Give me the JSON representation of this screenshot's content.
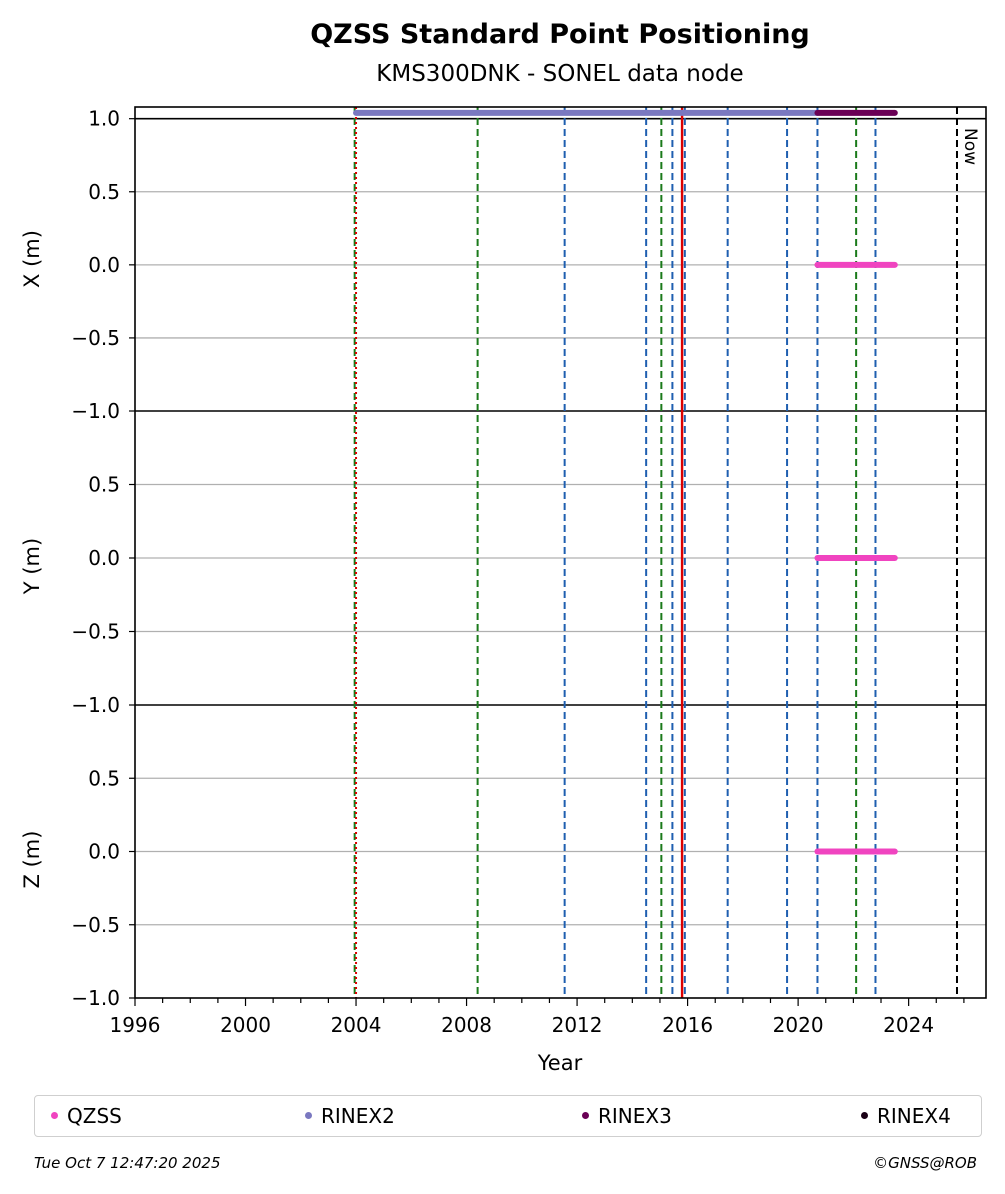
{
  "chart_data": {
    "type": "scatter",
    "title": "QZSS Standard Point Positioning",
    "subtitle": "KMS300DNK - SONEL data node",
    "xlabel": "Year",
    "xlim": [
      1996,
      2026.8
    ],
    "x_ticks": [
      "1996",
      "2000",
      "2004",
      "2008",
      "2012",
      "2016",
      "2020",
      "2024"
    ],
    "grid": true,
    "legend_position": "bottom",
    "panels": [
      {
        "ylabel": "X (m)",
        "ylim": [
          -1.0,
          1.08
        ],
        "y_ticks": [
          "1.0",
          "0.5",
          "0.0",
          "−0.5",
          "−1.0"
        ],
        "y_tick_values": [
          1.0,
          0.5,
          0.0,
          -0.5,
          -1.0
        ]
      },
      {
        "ylabel": "Y (m)",
        "ylim": [
          -1.0,
          1.0
        ],
        "y_ticks": [
          "0.5",
          "0.0",
          "−0.5",
          "−1.0"
        ],
        "y_tick_values": [
          0.5,
          0.0,
          -0.5,
          -1.0
        ]
      },
      {
        "ylabel": "Z (m)",
        "ylim": [
          -1.0,
          1.0
        ],
        "y_ticks": [
          "0.5",
          "0.0",
          "−0.5",
          "−1.0"
        ],
        "y_tick_values": [
          0.5,
          0.0,
          -0.5,
          -1.0
        ]
      }
    ],
    "series": [
      {
        "name": "QZSS",
        "color": "#f044c0",
        "x_range": [
          2020.7,
          2023.5
        ],
        "y": {
          "X": 0.0,
          "Y": 0.0,
          "Z": 0.0
        }
      },
      {
        "name": "RINEX2",
        "color": "#7a78c0",
        "x_range": [
          2004.0,
          2020.7
        ],
        "availability_y": 1.04
      },
      {
        "name": "RINEX3",
        "color": "#6a0055",
        "x_range": [
          2020.7,
          2023.5
        ],
        "availability_y": 1.04
      },
      {
        "name": "RINEX4",
        "color": "#1a0015"
      }
    ],
    "event_lines": [
      {
        "x": 2003.95,
        "style": "dashed",
        "color": "#1a7a1a"
      },
      {
        "x": 2004.0,
        "style": "dotted",
        "color": "#dd0000"
      },
      {
        "x": 2008.4,
        "style": "dashed",
        "color": "#1a7a1a"
      },
      {
        "x": 2011.55,
        "style": "dashed",
        "color": "#1f5fb0"
      },
      {
        "x": 2014.5,
        "style": "dashed",
        "color": "#1f5fb0"
      },
      {
        "x": 2015.05,
        "style": "dashed",
        "color": "#1a7a1a"
      },
      {
        "x": 2015.45,
        "style": "dashed",
        "color": "#1f5fb0"
      },
      {
        "x": 2015.8,
        "style": "solid",
        "color": "#dd0000"
      },
      {
        "x": 2015.9,
        "style": "dashed",
        "color": "#1f5fb0"
      },
      {
        "x": 2017.45,
        "style": "dashed",
        "color": "#1f5fb0"
      },
      {
        "x": 2019.6,
        "style": "dashed",
        "color": "#1f5fb0"
      },
      {
        "x": 2020.7,
        "style": "dashed",
        "color": "#1f5fb0"
      },
      {
        "x": 2022.1,
        "style": "dashed",
        "color": "#1a7a1a"
      },
      {
        "x": 2022.8,
        "style": "dashed",
        "color": "#1f5fb0"
      },
      {
        "x": 2025.75,
        "style": "dashed",
        "color": "#000000",
        "label": "Now"
      }
    ]
  },
  "legend": {
    "items": [
      {
        "label": "QZSS",
        "color": "#f044c0"
      },
      {
        "label": "RINEX2",
        "color": "#7a78c0"
      },
      {
        "label": "RINEX3",
        "color": "#6a0055"
      },
      {
        "label": "RINEX4",
        "color": "#1a0015"
      }
    ]
  },
  "footer": {
    "timestamp": "Tue Oct  7 12:47:20 2025",
    "credit": "©GNSS@ROB"
  }
}
